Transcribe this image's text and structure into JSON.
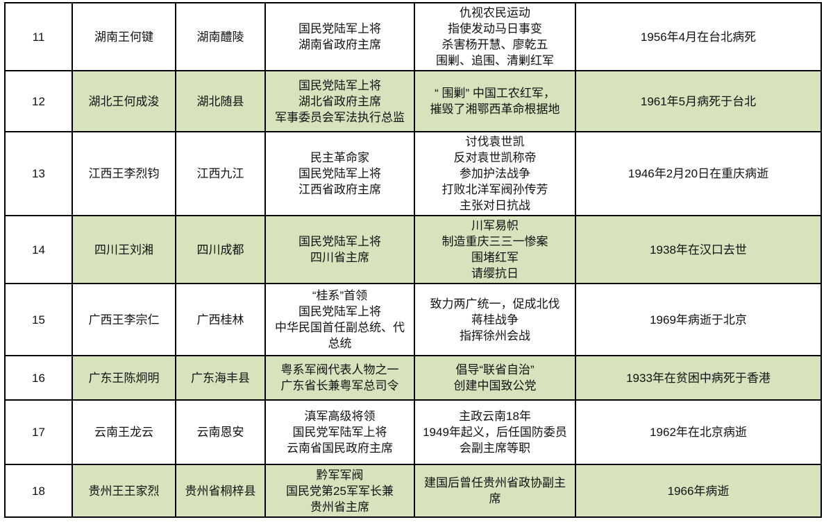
{
  "colors": {
    "highlight_green": "#d6e3bc",
    "border": "#000000",
    "text": "#111111",
    "background": "#ffffff"
  },
  "table": {
    "column_keys": [
      "number",
      "name",
      "birthplace",
      "titles",
      "deeds",
      "death"
    ],
    "rows": [
      {
        "number": "11",
        "name": "湖南王何键",
        "birthplace": "湖南醴陵",
        "titles": [
          "国民党陆军上将",
          "湖南省政府主席"
        ],
        "deeds": [
          "仇视农民运动",
          "指使发动马日事变",
          "杀害杨开慧、廖乾五",
          "围剿、追围、清剿红军"
        ],
        "death": "1956年4月在台北病死",
        "highlighted": false
      },
      {
        "number": "12",
        "name": "湖北王何成浚",
        "birthplace": "湖北随县",
        "titles": [
          "国民党陆军上将",
          "湖北省政府主席",
          "军事委员会军法执行总监"
        ],
        "deeds": [
          "“ 围剿” 中国工农红军，",
          "摧毁了湘鄂西革命根据地"
        ],
        "death": "1961年5月病死于台北",
        "highlighted": true
      },
      {
        "number": "13",
        "name": "江西王李烈钧",
        "birthplace": "江西九江",
        "titles": [
          "民主革命家",
          "国民党陆军上将",
          "江西省政府主席"
        ],
        "deeds": [
          "讨伐袁世凯",
          "反对袁世凯称帝",
          "参加护法战争",
          "打败北洋军阀孙传芳",
          "主张对日抗战"
        ],
        "death": "1946年2月20日在重庆病逝",
        "highlighted": false
      },
      {
        "number": "14",
        "name": "四川王刘湘",
        "birthplace": "四川成都",
        "titles": [
          "国民党陆军上将",
          "四川省主席"
        ],
        "deeds": [
          "川军易帜",
          "制造重庆三三一惨案",
          "围堵红军",
          "请缨抗日"
        ],
        "death": "1938年在汉口去世",
        "highlighted": true
      },
      {
        "number": "15",
        "name": "广西王李宗仁",
        "birthplace": "广西桂林",
        "titles": [
          "“桂系”首领",
          "国民党陆军上将",
          "中华民国首任副总统、代",
          "总统"
        ],
        "deeds": [
          "致力两广统一，促成北伐",
          "蒋桂战争",
          "指挥徐州会战"
        ],
        "death": "1969年病逝于北京",
        "highlighted": false
      },
      {
        "number": "16",
        "name": "广东王陈炯明",
        "birthplace": "广东海丰县",
        "titles": [
          "粤系军阀代表人物之一",
          "广东省长兼粤军总司令"
        ],
        "deeds": [
          "倡导“联省自治”",
          "创建中国致公党"
        ],
        "death": "1933年在贫困中病死于香港",
        "highlighted": true
      },
      {
        "number": "17",
        "name": "云南王龙云",
        "birthplace": "云南恩安",
        "titles": [
          "滇军高级将领",
          "国民党军陆军上将",
          "云南省国民政府主席"
        ],
        "deeds": [
          "主政云南18年",
          "1949年起义，后任国防委员",
          "会副主席等职"
        ],
        "death": "1962年在北京病逝",
        "highlighted": false
      },
      {
        "number": "18",
        "name": "贵州王王家烈",
        "birthplace": "贵州省桐梓县",
        "titles": [
          "黔军军阀",
          "国民党第25军军长兼",
          "贵州省主席"
        ],
        "deeds": [
          "建国后曾任贵州省政协副主",
          "席"
        ],
        "death": "1966年病逝",
        "highlighted": true
      }
    ]
  }
}
